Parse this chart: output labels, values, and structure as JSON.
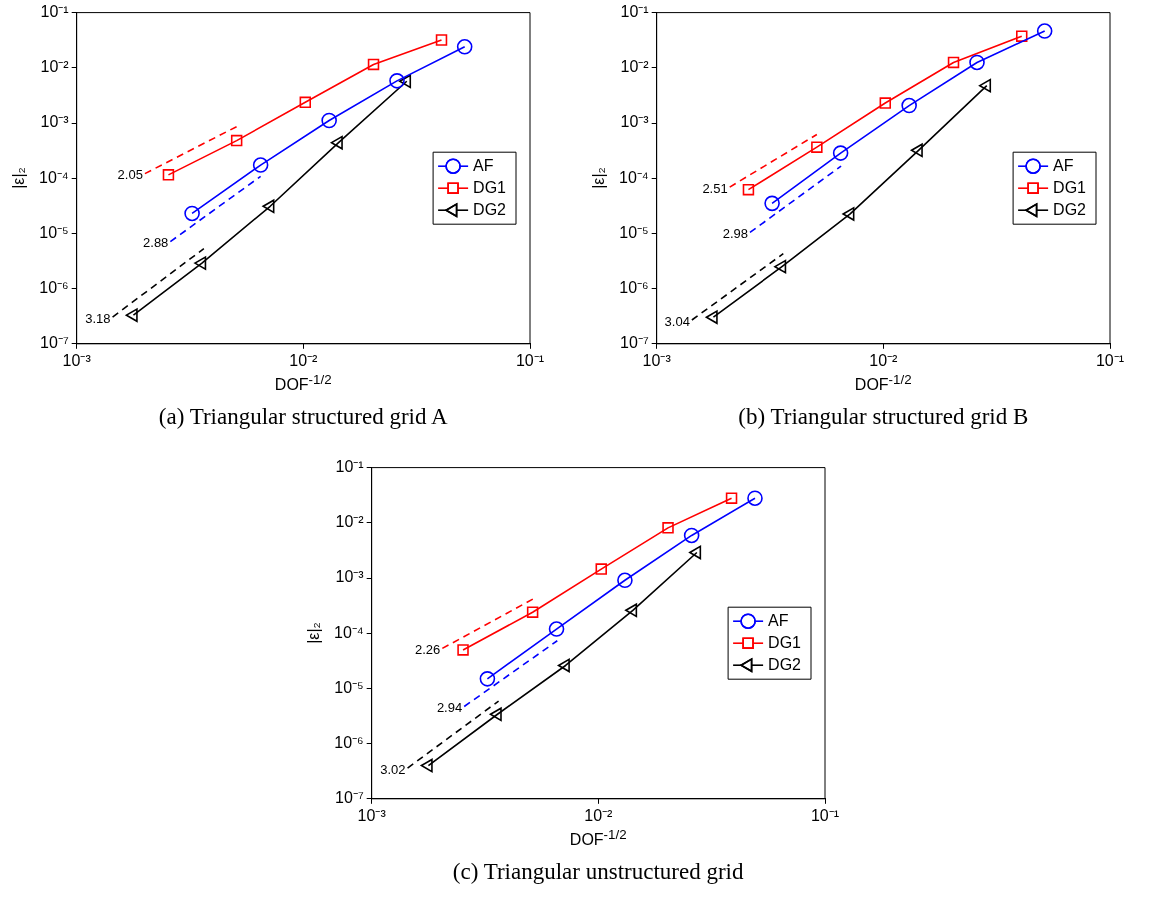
{
  "chart_data": [
    {
      "type": "line",
      "title": "(a) Triangular structured grid A",
      "xlabel": "DOF$^{-1/2}$",
      "ylabel": "|ε|₂",
      "log": "xy",
      "grid": false,
      "legend": "right",
      "xlim": [
        0.001,
        0.1
      ],
      "xticks": [
        {
          "value": 0.001,
          "label": "10⁻³"
        },
        {
          "value": 0.01,
          "label": "10⁻²"
        },
        {
          "value": 0.1,
          "label": "10⁻¹"
        }
      ],
      "ylim": [
        1e-07,
        0.1
      ],
      "yticks": [
        {
          "value": 1e-07,
          "label": "10⁻⁷"
        },
        {
          "value": 1e-06,
          "label": "10⁻⁶"
        },
        {
          "value": 1e-05,
          "label": "10⁻⁵"
        },
        {
          "value": 0.0001,
          "label": "10⁻⁴"
        },
        {
          "value": 0.001,
          "label": "10⁻³"
        },
        {
          "value": 0.01,
          "label": "10⁻²"
        },
        {
          "value": 0.1,
          "label": "10⁻¹"
        }
      ],
      "series": [
        {
          "name": "AF",
          "color": "#0000ff",
          "marker": "circle",
          "x": [
            0.00323,
            0.00648,
            0.013,
            0.0259,
            0.0515
          ],
          "values": [
            2.3e-05,
            0.000173,
            0.00111,
            0.0058,
            0.024
          ]
        },
        {
          "name": "DG1",
          "color": "#ff0000",
          "marker": "square",
          "x": [
            0.00254,
            0.00508,
            0.0102,
            0.0204,
            0.0407
          ],
          "values": [
            0.000115,
            0.00048,
            0.00237,
            0.0115,
            0.0319
          ]
        },
        {
          "name": "DG2",
          "color": "#000000",
          "marker": "triangle",
          "x": [
            0.00178,
            0.00357,
            0.00714,
            0.0143,
            0.0286
          ],
          "values": [
            3.3e-07,
            2.9e-06,
            3.1e-05,
            0.00044,
            0.0057
          ]
        },
        {
          "color": "#ff0000",
          "marker": "none",
          "line_style": "dashed",
          "x": [
            0.002,
            0.00508
          ],
          "values": [
            0.000121,
            0.00086
          ]
        },
        {
          "color": "#0000ff",
          "marker": "none",
          "line_style": "dashed",
          "x": [
            0.00259,
            0.00648
          ],
          "values": [
            7.1e-06,
            0.000108
          ]
        },
        {
          "color": "#000000",
          "marker": "none",
          "line_style": "dashed",
          "x": [
            0.00144,
            0.00364
          ],
          "values": [
            3.05e-07,
            5.3e-06
          ]
        }
      ],
      "annotations": [
        {
          "text": "2.05",
          "x": 0.002,
          "y": 0.000121
        },
        {
          "text": "2.88",
          "x": 0.00259,
          "y": 7.1e-06
        },
        {
          "text": "3.18",
          "x": 0.00144,
          "y": 3.05e-07
        }
      ]
    },
    {
      "type": "line",
      "title": "(b) Triangular structured grid B",
      "xlabel": "DOF$^{-1/2}$",
      "ylabel": "|ε|₂",
      "log": "xy",
      "grid": false,
      "legend": "right",
      "xlim": [
        0.001,
        0.1
      ],
      "xticks": [
        {
          "value": 0.001,
          "label": "10⁻³"
        },
        {
          "value": 0.01,
          "label": "10⁻²"
        },
        {
          "value": 0.1,
          "label": "10⁻¹"
        }
      ],
      "ylim": [
        1e-07,
        0.1
      ],
      "yticks": [
        {
          "value": 1e-07,
          "label": "10⁻⁷"
        },
        {
          "value": 1e-06,
          "label": "10⁻⁶"
        },
        {
          "value": 1e-05,
          "label": "10⁻⁵"
        },
        {
          "value": 0.0001,
          "label": "10⁻⁴"
        },
        {
          "value": 0.001,
          "label": "10⁻³"
        },
        {
          "value": 0.01,
          "label": "10⁻²"
        },
        {
          "value": 0.1,
          "label": "10⁻¹"
        }
      ],
      "series": [
        {
          "name": "AF",
          "color": "#0000ff",
          "marker": "circle",
          "x": [
            0.00323,
            0.00648,
            0.013,
            0.0259,
            0.0515
          ],
          "values": [
            3.5e-05,
            0.000285,
            0.00207,
            0.0125,
            0.0463
          ]
        },
        {
          "name": "DG1",
          "color": "#ff0000",
          "marker": "square",
          "x": [
            0.00254,
            0.00509,
            0.0102,
            0.0204,
            0.0408
          ],
          "values": [
            6.2e-05,
            0.000365,
            0.0023,
            0.0125,
            0.0374
          ]
        },
        {
          "name": "DG2",
          "color": "#000000",
          "marker": "triangle",
          "x": [
            0.00178,
            0.00357,
            0.00714,
            0.0143,
            0.0286
          ],
          "values": [
            3.03e-07,
            2.5e-06,
            2.25e-05,
            0.00032,
            0.00475
          ]
        },
        {
          "color": "#ff0000",
          "marker": "none",
          "line_style": "dashed",
          "x": [
            0.0021,
            0.00509
          ],
          "values": [
            6.9e-05,
            0.00062
          ]
        },
        {
          "color": "#0000ff",
          "marker": "none",
          "line_style": "dashed",
          "x": [
            0.00258,
            0.00651
          ],
          "values": [
            1.04e-05,
            0.000166
          ]
        },
        {
          "color": "#000000",
          "marker": "none",
          "line_style": "dashed",
          "x": [
            0.00143,
            0.00362
          ],
          "values": [
            2.7e-07,
            4.3e-06
          ]
        }
      ],
      "annotations": [
        {
          "text": "2.51",
          "x": 0.0021,
          "y": 6.9e-05
        },
        {
          "text": "2.98",
          "x": 0.00258,
          "y": 1.04e-05
        },
        {
          "text": "3.04",
          "x": 0.00143,
          "y": 2.7e-07
        }
      ]
    },
    {
      "type": "line",
      "title": "(c) Triangular unstructured grid",
      "xlabel": "DOF$^{-1/2}$",
      "ylabel": "|ε|₂",
      "log": "xy",
      "grid": false,
      "legend": "right",
      "xlim": [
        0.001,
        0.1
      ],
      "xticks": [
        {
          "value": 0.001,
          "label": "10⁻³"
        },
        {
          "value": 0.01,
          "label": "10⁻²"
        },
        {
          "value": 0.1,
          "label": "10⁻¹"
        }
      ],
      "ylim": [
        1e-07,
        0.1
      ],
      "yticks": [
        {
          "value": 1e-07,
          "label": "10⁻⁷"
        },
        {
          "value": 1e-06,
          "label": "10⁻⁶"
        },
        {
          "value": 1e-05,
          "label": "10⁻⁵"
        },
        {
          "value": 0.0001,
          "label": "10⁻⁴"
        },
        {
          "value": 0.001,
          "label": "10⁻³"
        },
        {
          "value": 0.01,
          "label": "10⁻²"
        },
        {
          "value": 0.1,
          "label": "10⁻¹"
        }
      ],
      "series": [
        {
          "name": "AF",
          "color": "#0000ff",
          "marker": "circle",
          "x": [
            0.00324,
            0.00654,
            0.0131,
            0.0258,
            0.0491
          ],
          "values": [
            1.49e-05,
            0.000119,
            0.00091,
            0.0059,
            0.0279
          ]
        },
        {
          "name": "DG1",
          "color": "#ff0000",
          "marker": "square",
          "x": [
            0.00253,
            0.00513,
            0.0103,
            0.0203,
            0.0387
          ],
          "values": [
            4.97e-05,
            0.00024,
            0.00145,
            0.0081,
            0.0279
          ]
        },
        {
          "name": "DG2",
          "color": "#000000",
          "marker": "triangle",
          "x": [
            0.00178,
            0.00359,
            0.00717,
            0.0142,
            0.0272
          ],
          "values": [
            4e-07,
            3.4e-06,
            2.6e-05,
            0.00026,
            0.0029
          ]
        },
        {
          "color": "#ff0000",
          "marker": "none",
          "line_style": "dashed",
          "x": [
            0.00205,
            0.00517
          ],
          "values": [
            5.3e-05,
            0.00042
          ]
        },
        {
          "color": "#0000ff",
          "marker": "none",
          "line_style": "dashed",
          "x": [
            0.00256,
            0.00659
          ],
          "values": [
            4.7e-06,
            7.3e-05
          ]
        },
        {
          "color": "#000000",
          "marker": "none",
          "line_style": "dashed",
          "x": [
            0.00144,
            0.00363
          ],
          "values": [
            3.6e-07,
            5.9e-06
          ]
        }
      ],
      "annotations": [
        {
          "text": "2.26",
          "x": 0.00205,
          "y": 5.3e-05
        },
        {
          "text": "2.94",
          "x": 0.00256,
          "y": 4.7e-06
        },
        {
          "text": "3.02",
          "x": 0.00144,
          "y": 3.6e-07
        }
      ]
    }
  ]
}
